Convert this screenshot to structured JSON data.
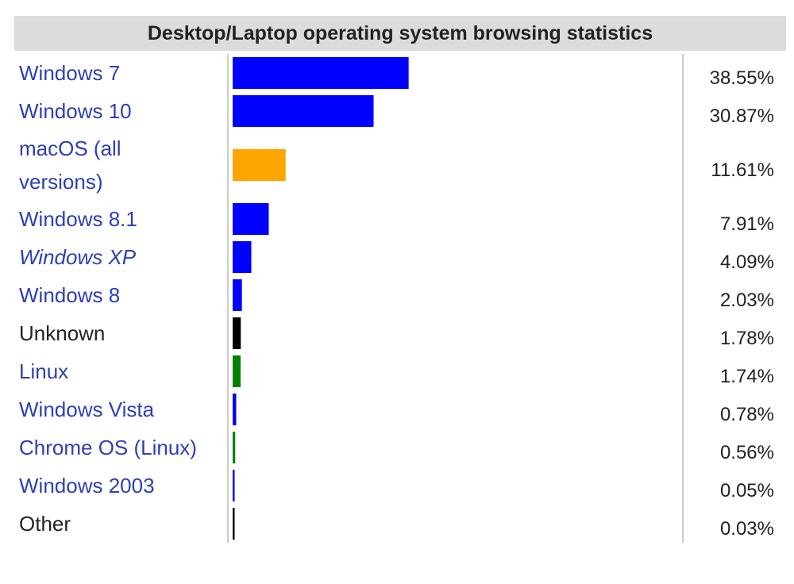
{
  "colors": {
    "link": "#2d3fb5",
    "plain_text": "#222222",
    "title_background": "#dcdcdc",
    "gridline": "#999999"
  },
  "chart_data": {
    "type": "bar",
    "orientation": "horizontal",
    "title": "Desktop/Laptop operating system browsing statistics",
    "categories": [
      "Windows 7",
      "Windows 10",
      "macOS (all versions)",
      "Windows 8.1",
      "Windows XP",
      "Windows 8",
      "Unknown",
      "Linux",
      "Windows Vista",
      "Chrome OS (Linux)",
      "Windows 2003",
      "Other"
    ],
    "label_lines": [
      [
        "Windows 7"
      ],
      [
        "Windows 10"
      ],
      [
        "macOS (all",
        "versions)"
      ],
      [
        "Windows 8.1"
      ],
      [
        "Windows XP"
      ],
      [
        "Windows 8"
      ],
      [
        "Unknown"
      ],
      [
        "Linux"
      ],
      [
        "Windows Vista"
      ],
      [
        "Chrome OS (Linux)"
      ],
      [
        "Windows 2003"
      ],
      [
        "Other"
      ]
    ],
    "label_is_link": [
      true,
      true,
      true,
      true,
      true,
      true,
      false,
      true,
      true,
      true,
      true,
      false
    ],
    "label_italic": [
      false,
      false,
      false,
      false,
      true,
      false,
      false,
      false,
      false,
      false,
      false,
      false
    ],
    "values": [
      38.55,
      30.87,
      11.61,
      7.91,
      4.09,
      2.03,
      1.78,
      1.74,
      0.78,
      0.56,
      0.05,
      0.03
    ],
    "value_labels": [
      "38.55%",
      "30.87%",
      "11.61%",
      "7.91%",
      "4.09%",
      "2.03%",
      "1.78%",
      "1.74%",
      "0.78%",
      "0.56%",
      "0.05%",
      "0.03%"
    ],
    "bar_colors": [
      "#0000ff",
      "#0000ff",
      "#ffa500",
      "#0000ff",
      "#0000ff",
      "#0000ff",
      "#000000",
      "#008000",
      "#0000ff",
      "#008000",
      "#0000ff",
      "#000000"
    ],
    "xlim": [
      0,
      100
    ],
    "grid": false
  }
}
